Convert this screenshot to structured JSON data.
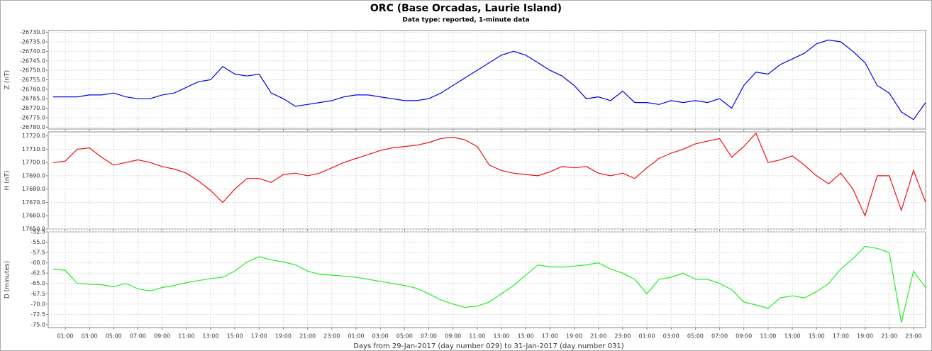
{
  "chart_data": [
    {
      "type": "line",
      "title": "ORC (Base Orcadas, Laurie Island)",
      "subtitle": "Data type: reported, 1-minute data",
      "ylabel": "Z (nT)",
      "x": [
        0,
        1,
        2,
        3,
        4,
        5,
        6,
        7,
        8,
        9,
        10,
        11,
        12,
        13,
        14,
        15,
        16,
        17,
        18,
        19,
        20,
        21,
        22,
        23,
        24,
        25,
        26,
        27,
        28,
        29,
        30,
        31,
        32,
        33,
        34,
        35,
        36,
        37,
        38,
        39,
        40,
        41,
        42,
        43,
        44,
        45,
        46,
        47,
        48,
        49,
        50,
        51,
        52,
        53,
        54,
        55,
        56,
        57,
        58,
        59,
        60,
        61,
        62,
        63,
        64,
        65,
        66,
        67,
        68,
        69,
        70,
        71,
        72
      ],
      "series": [
        {
          "name": "Z",
          "color": "#0000ee",
          "values": [
            -26764,
            -26764,
            -26764,
            -26763,
            -26763,
            -26762,
            -26764,
            -26765,
            -26765,
            -26763,
            -26762,
            -26759,
            -26756,
            -26755,
            -26748,
            -26752,
            -26753,
            -26752,
            -26762,
            -26765,
            -26769,
            -26768,
            -26767,
            -26766,
            -26764,
            -26763,
            -26763,
            -26764,
            -26765,
            -26766,
            -26766,
            -26765,
            -26762,
            -26758,
            -26754,
            -26750,
            -26746,
            -26742,
            -26740,
            -26742,
            -26746,
            -26750,
            -26753,
            -26758,
            -26765,
            -26764,
            -26766,
            -26761,
            -26767,
            -26767,
            -26768,
            -26766,
            -26767,
            -26766,
            -26767,
            -26765,
            -26770,
            -26758,
            -26751,
            -26752,
            -26747,
            -26744,
            -26741,
            -26736,
            -26734,
            -26735,
            -26740,
            -26746,
            -26758,
            -26762,
            -26772,
            -26776,
            -26767
          ]
        }
      ],
      "xlim": [
        -0.4,
        72
      ],
      "ylim": [
        -26781,
        -26729
      ],
      "yticks": [
        {
          "value": -26730,
          "label": "-26730.0"
        },
        {
          "value": -26735,
          "label": "-26735.0"
        },
        {
          "value": -26740,
          "label": "-26740.0"
        },
        {
          "value": -26745,
          "label": "-26745.0"
        },
        {
          "value": -26750,
          "label": "-26750.0"
        },
        {
          "value": -26755,
          "label": "-26755.0"
        },
        {
          "value": -26760,
          "label": "-26760.0"
        },
        {
          "value": -26765,
          "label": "-26765.0"
        },
        {
          "value": -26770,
          "label": "-26770.0"
        },
        {
          "value": -26775,
          "label": "-26775.0"
        },
        {
          "value": -26780,
          "label": "-26780.0"
        }
      ],
      "grid": true
    },
    {
      "type": "line",
      "ylabel": "H (nT)",
      "x": [
        0,
        1,
        2,
        3,
        4,
        5,
        6,
        7,
        8,
        9,
        10,
        11,
        12,
        13,
        14,
        15,
        16,
        17,
        18,
        19,
        20,
        21,
        22,
        23,
        24,
        25,
        26,
        27,
        28,
        29,
        30,
        31,
        32,
        33,
        34,
        35,
        36,
        37,
        38,
        39,
        40,
        41,
        42,
        43,
        44,
        45,
        46,
        47,
        48,
        49,
        50,
        51,
        52,
        53,
        54,
        55,
        56,
        57,
        58,
        59,
        60,
        61,
        62,
        63,
        64,
        65,
        66,
        67,
        68,
        69,
        70,
        71,
        72
      ],
      "series": [
        {
          "name": "H",
          "color": "#ee1111",
          "values": [
            17700,
            17701,
            17710,
            17711,
            17704,
            17698,
            17700,
            17702,
            17700,
            17697,
            17695,
            17692,
            17686,
            17679,
            17670,
            17680,
            17688,
            17688,
            17685,
            17691,
            17692,
            17690,
            17692,
            17696,
            17700,
            17703,
            17706,
            17709,
            17711,
            17712,
            17713,
            17715,
            17718,
            17719,
            17717,
            17712,
            17698,
            17694,
            17692,
            17691,
            17690,
            17693,
            17697,
            17696,
            17697,
            17692,
            17690,
            17692,
            17688,
            17696,
            17703,
            17707,
            17710,
            17714,
            17716,
            17718,
            17704,
            17712,
            17722,
            17700,
            17702,
            17705,
            17698,
            17690,
            17684,
            17692,
            17680,
            17660,
            17690,
            17690,
            17664,
            17694,
            17670
          ]
        }
      ],
      "xlim": [
        -0.4,
        72
      ],
      "ylim": [
        17650,
        17723
      ],
      "yticks": [
        {
          "value": 17650,
          "label": "17650.0"
        },
        {
          "value": 17660,
          "label": "17660.0"
        },
        {
          "value": 17670,
          "label": "17670.0"
        },
        {
          "value": 17680,
          "label": "17680.0"
        },
        {
          "value": 17690,
          "label": "17690.0"
        },
        {
          "value": 17700,
          "label": "17700.0"
        },
        {
          "value": 17710,
          "label": "17710.0"
        },
        {
          "value": 17720,
          "label": "17720.0"
        }
      ],
      "grid": true
    },
    {
      "type": "line",
      "ylabel": "D (minutes)",
      "xlabel": "Days from 29-Jan-2017 (day number 029) to 31-Jan-2017 (day number 031)",
      "x": [
        0,
        1,
        2,
        3,
        4,
        5,
        6,
        7,
        8,
        9,
        10,
        11,
        12,
        13,
        14,
        15,
        16,
        17,
        18,
        19,
        20,
        21,
        22,
        23,
        24,
        25,
        26,
        27,
        28,
        29,
        30,
        31,
        32,
        33,
        34,
        35,
        36,
        37,
        38,
        39,
        40,
        41,
        42,
        43,
        44,
        45,
        46,
        47,
        48,
        49,
        50,
        51,
        52,
        53,
        54,
        55,
        56,
        57,
        58,
        59,
        60,
        61,
        62,
        63,
        64,
        65,
        66,
        67,
        68,
        69,
        70,
        71,
        72
      ],
      "series": [
        {
          "name": "D",
          "color": "#22ee22",
          "values": [
            -61.5,
            -61.8,
            -65.0,
            -65.2,
            -65.3,
            -65.8,
            -65.0,
            -66.3,
            -66.8,
            -66.0,
            -65.5,
            -64.8,
            -64.3,
            -63.8,
            -63.5,
            -62.0,
            -59.8,
            -58.5,
            -59.3,
            -59.8,
            -60.5,
            -62.0,
            -62.8,
            -63.0,
            -63.2,
            -63.5,
            -64.0,
            -64.5,
            -65.0,
            -65.5,
            -66.2,
            -67.5,
            -69.0,
            -70.0,
            -70.8,
            -70.5,
            -69.5,
            -67.5,
            -65.5,
            -63.0,
            -60.5,
            -61.0,
            -61.0,
            -60.8,
            -60.5,
            -60.0,
            -61.5,
            -62.5,
            -64.0,
            -67.5,
            -64.0,
            -63.5,
            -62.5,
            -64.0,
            -64.0,
            -65.0,
            -66.5,
            -69.5,
            -70.2,
            -71.0,
            -68.5,
            -68.0,
            -68.5,
            -67.0,
            -65.0,
            -61.5,
            -59.0,
            -56.0,
            -56.5,
            -57.5,
            -74.5,
            -62.0,
            -66.0
          ]
        }
      ],
      "xlim": [
        -0.4,
        72
      ],
      "ylim": [
        -75.7,
        -52.5
      ],
      "yticks": [
        -52.5,
        {
          "value": -55,
          "label": "-55.0"
        },
        -57.5,
        {
          "value": -60,
          "label": "-60.0"
        },
        -62.5,
        {
          "value": -65,
          "label": "-65.0"
        },
        -67.5,
        {
          "value": -70,
          "label": "-70.0"
        },
        -72.5,
        {
          "value": -75,
          "label": "-75.0"
        }
      ],
      "xticks": [
        {
          "value": 1,
          "label": "01:00"
        },
        {
          "value": 3,
          "label": "03:00"
        },
        {
          "value": 5,
          "label": "05:00"
        },
        {
          "value": 7,
          "label": "07:00"
        },
        {
          "value": 9,
          "label": "09:00"
        },
        {
          "value": 11,
          "label": "11:00"
        },
        {
          "value": 13,
          "label": "13:00"
        },
        {
          "value": 15,
          "label": "15:00"
        },
        {
          "value": 17,
          "label": "17:00"
        },
        {
          "value": 19,
          "label": "19:00"
        },
        {
          "value": 21,
          "label": "21:00"
        },
        {
          "value": 23,
          "label": "23:00"
        },
        {
          "value": 25,
          "label": "01:00"
        },
        {
          "value": 27,
          "label": "03:00"
        },
        {
          "value": 29,
          "label": "05:00"
        },
        {
          "value": 31,
          "label": "07:00"
        },
        {
          "value": 33,
          "label": "09:00"
        },
        {
          "value": 35,
          "label": "11:00"
        },
        {
          "value": 37,
          "label": "13:00"
        },
        {
          "value": 39,
          "label": "15:00"
        },
        {
          "value": 41,
          "label": "17:00"
        },
        {
          "value": 43,
          "label": "19:00"
        },
        {
          "value": 45,
          "label": "21:00"
        },
        {
          "value": 47,
          "label": "23:00"
        },
        {
          "value": 49,
          "label": "01:00"
        },
        {
          "value": 51,
          "label": "03:00"
        },
        {
          "value": 53,
          "label": "05:00"
        },
        {
          "value": 55,
          "label": "07:00"
        },
        {
          "value": 57,
          "label": "09:00"
        },
        {
          "value": 59,
          "label": "11:00"
        },
        {
          "value": 61,
          "label": "13:00"
        },
        {
          "value": 63,
          "label": "15:00"
        },
        {
          "value": 65,
          "label": "17:00"
        },
        {
          "value": 67,
          "label": "19:00"
        },
        {
          "value": 69,
          "label": "21:00"
        },
        {
          "value": 71,
          "label": "23:00"
        }
      ],
      "grid": true
    }
  ]
}
